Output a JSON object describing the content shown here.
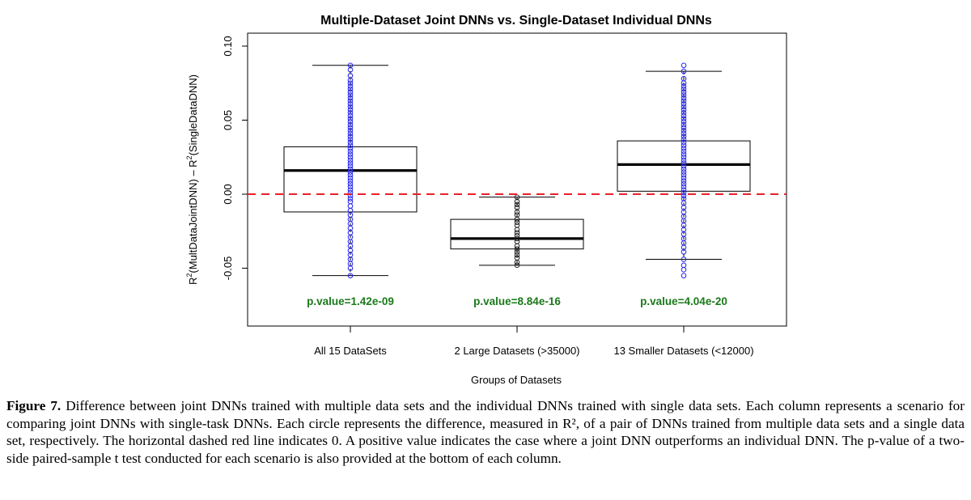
{
  "chart_data": {
    "type": "box",
    "title": "Multiple-Dataset Joint DNNs vs. Single-Dataset Individual DNNs",
    "xlabel": "Groups of Datasets",
    "ylabel": "R2(MultDataJointDNN) – R2(SingleDataDNN)",
    "ylabel_parts": [
      "R",
      "2",
      "(MultDataJointDNN) – R",
      "2",
      "(SingleDataDNN)"
    ],
    "ylim": [
      -0.087,
      0.107
    ],
    "yticks": [
      "-0.05",
      "0.00",
      "0.05",
      "0.10"
    ],
    "ytick_values": [
      -0.05,
      0.0,
      0.05,
      0.1
    ],
    "reference_line": {
      "value": 0,
      "style": "dashed",
      "color": "#e8202a"
    },
    "groups": [
      {
        "label": "All 15 DataSets",
        "whisker_low": -0.055,
        "q1": -0.012,
        "median": 0.016,
        "q3": 0.032,
        "whisker_high": 0.087,
        "p_value": "p.value=1.42e-09",
        "point_color": "#2222ee",
        "points": [
          0.087,
          0.084,
          0.08,
          0.077,
          0.075,
          0.073,
          0.071,
          0.069,
          0.067,
          0.065,
          0.063,
          0.061,
          0.059,
          0.057,
          0.055,
          0.053,
          0.051,
          0.049,
          0.047,
          0.045,
          0.043,
          0.041,
          0.039,
          0.037,
          0.035,
          0.033,
          0.031,
          0.029,
          0.027,
          0.025,
          0.023,
          0.021,
          0.019,
          0.017,
          0.015,
          0.013,
          0.011,
          0.009,
          0.007,
          0.005,
          0.003,
          0.001,
          -0.001,
          -0.003,
          -0.005,
          -0.008,
          -0.011,
          -0.014,
          -0.017,
          -0.02,
          -0.023,
          -0.026,
          -0.029,
          -0.032,
          -0.035,
          -0.038,
          -0.041,
          -0.044,
          -0.047,
          -0.05,
          -0.055
        ]
      },
      {
        "label": "2 Large Datasets (>35000)",
        "whisker_low": -0.048,
        "q1": -0.037,
        "median": -0.03,
        "q3": -0.017,
        "whisker_high": -0.002,
        "p_value": "p.value=8.84e-16",
        "point_color": "#222222",
        "points": [
          -0.002,
          -0.005,
          -0.007,
          -0.009,
          -0.012,
          -0.014,
          -0.017,
          -0.019,
          -0.021,
          -0.024,
          -0.026,
          -0.028,
          -0.03,
          -0.032,
          -0.035,
          -0.037,
          -0.039,
          -0.041,
          -0.043,
          -0.046,
          -0.048
        ]
      },
      {
        "label": "13 Smaller Datasets (<12000)",
        "whisker_low": -0.044,
        "q1": 0.002,
        "median": 0.02,
        "q3": 0.036,
        "whisker_high": 0.083,
        "p_value": "p.value=4.04e-20",
        "point_color": "#2222ee",
        "points": [
          0.087,
          0.083,
          0.078,
          0.075,
          0.073,
          0.071,
          0.069,
          0.067,
          0.065,
          0.063,
          0.061,
          0.059,
          0.057,
          0.055,
          0.053,
          0.051,
          0.049,
          0.047,
          0.045,
          0.043,
          0.041,
          0.039,
          0.037,
          0.035,
          0.033,
          0.031,
          0.029,
          0.027,
          0.025,
          0.023,
          0.021,
          0.019,
          0.017,
          0.015,
          0.013,
          0.011,
          0.009,
          0.007,
          0.005,
          0.003,
          0.001,
          -0.001,
          -0.003,
          -0.006,
          -0.009,
          -0.012,
          -0.015,
          -0.018,
          -0.021,
          -0.024,
          -0.027,
          -0.03,
          -0.033,
          -0.036,
          -0.039,
          -0.044,
          -0.048,
          -0.051,
          -0.055
        ]
      }
    ],
    "p_value_color": "#1a7a1a"
  },
  "caption": {
    "label": "Figure 7.",
    "text": " Difference between joint DNNs trained with multiple data sets and the individual DNNs trained with single data sets. Each column represents a scenario for comparing joint DNNs with single-task DNNs. Each circle represents the difference, measured in R², of a pair of DNNs trained from multiple data sets and a single data set, respectively. The horizontal dashed red line indicates 0. A positive value indicates the case where a joint DNN outperforms an individual DNN. The p-value of a two-side paired-sample t test conducted for each scenario is also provided at the bottom of each column."
  }
}
